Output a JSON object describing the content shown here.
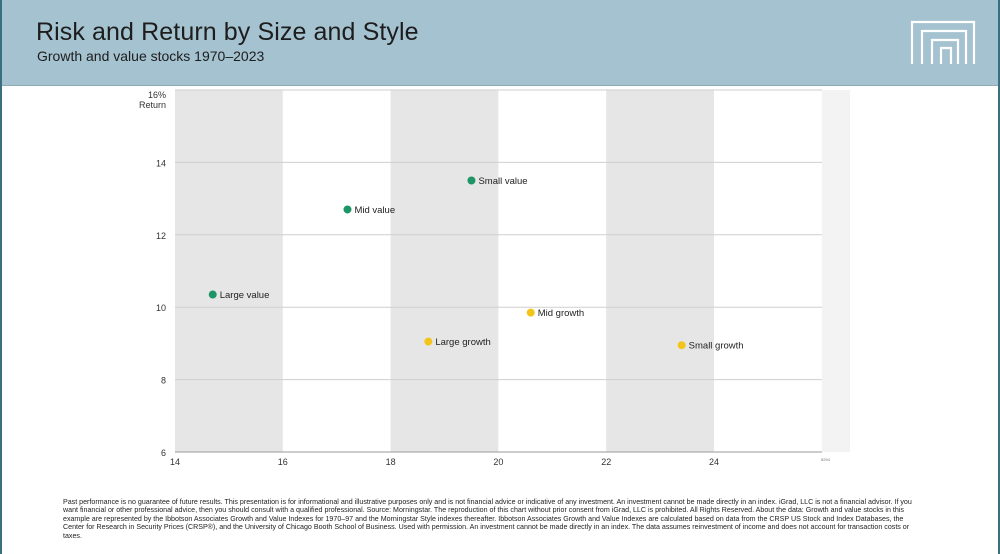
{
  "colors": {
    "header_bg": "#a4c2cf",
    "frame": "#3b6f7f",
    "band": "#e6e6e6",
    "value": "#1e9566",
    "growth": "#f3c41a",
    "grid": "#cfcfcf"
  },
  "header": {
    "title": "Risk and Return by Size and Style",
    "subtitle": "Growth and value stocks 1970–2023",
    "logo_icon": "brand-logo-icon"
  },
  "chart_data": {
    "type": "scatter",
    "title": "Risk and Return by Size and Style",
    "subtitle": "Growth and value stocks 1970–2023",
    "xlabel": "",
    "ylabel": "Return",
    "xlim": [
      14,
      26
    ],
    "ylim": [
      6,
      16
    ],
    "x_ticks": [
      14,
      16,
      18,
      20,
      22,
      24
    ],
    "y_ticks": [
      6,
      8,
      10,
      12,
      14
    ],
    "y_tick_labels": [
      "6",
      "8",
      "10",
      "12",
      "14"
    ],
    "y_top_label": "16%",
    "grid": true,
    "series": [
      {
        "name": "Value",
        "color": "#1e9566",
        "points": [
          {
            "label": "Large value",
            "x": 14.7,
            "y": 10.35
          },
          {
            "label": "Mid value",
            "x": 17.2,
            "y": 12.7
          },
          {
            "label": "Small value",
            "x": 19.5,
            "y": 13.5
          }
        ]
      },
      {
        "name": "Growth",
        "color": "#f3c41a",
        "points": [
          {
            "label": "Large growth",
            "x": 18.7,
            "y": 9.05
          },
          {
            "label": "Mid growth",
            "x": 20.6,
            "y": 9.85
          },
          {
            "label": "Small growth",
            "x": 23.4,
            "y": 8.95
          }
        ]
      }
    ],
    "source_code": "8294"
  },
  "footer": {
    "disclaimer": "Past performance is no guarantee of future results. This presentation is for informational and illustrative purposes only and is not financial advice or indicative of any investment. An investment cannot be made directly in an index. iGrad, LLC is not a financial advisor. If you want financial or other professional advice, then you should consult with a qualified professional. Source: Morningstar. The reproduction of this chart without prior consent from iGrad, LLC is prohibited. All Rights Reserved. About the data: Growth and value stocks in this example are represented by the Ibbotson Associates Growth and Value Indexes for 1970–97 and the Morningstar Style indexes thereafter. Ibbotson Associates Growth and Value Indexes are calculated based on data from the CRSP US Stock and Index Databases, the Center for Research in Security Prices (CRSP®), and the University of Chicago Booth School of Business. Used with permission. An investment cannot be made directly in an index. The data assumes reinvestment of income and does not account for transaction costs or taxes."
  }
}
